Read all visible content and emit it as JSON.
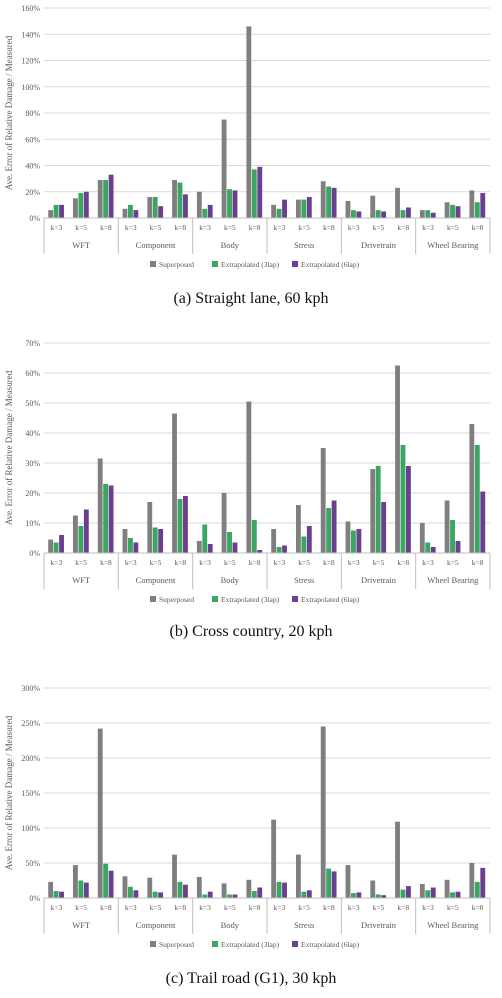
{
  "colors": {
    "superposed": "#7f7f7f",
    "extrap3": "#3aa661",
    "extrap6": "#6a3f8f",
    "grid": "#d9d9d9",
    "axis_text": "#595959"
  },
  "chart_data": [
    {
      "type": "bar",
      "caption": "(a) Straight lane, 60 kph",
      "ylabel": "Ave. Error of Relative Damage / Measured",
      "yticks": [
        "0%",
        "20%",
        "40%",
        "60%",
        "80%",
        "100%",
        "120%",
        "140%",
        "160%"
      ],
      "ylim": [
        0,
        160
      ],
      "groups": [
        "WFT",
        "Component",
        "Body",
        "Stress",
        "Drivetrain",
        "Wheel Bearing"
      ],
      "subcategories": [
        "k=3",
        "k=5",
        "k=8"
      ],
      "series": [
        {
          "name": "Superposed",
          "values": [
            6,
            15,
            29,
            7,
            16,
            29,
            20,
            75,
            146,
            10,
            14,
            28,
            13,
            17,
            23,
            6,
            12,
            21
          ]
        },
        {
          "name": "Extrapolated (3lap)",
          "values": [
            10,
            19,
            29,
            10,
            16,
            27,
            7,
            22,
            37,
            7,
            14,
            24,
            6,
            6,
            6,
            6,
            10,
            12
          ]
        },
        {
          "name": "Extrapolated (6lap)",
          "values": [
            10,
            20,
            33,
            6,
            9,
            18,
            10,
            21,
            39,
            14,
            16,
            23,
            5,
            5,
            8,
            4,
            9,
            19
          ]
        }
      ],
      "legend": "bottom"
    },
    {
      "type": "bar",
      "caption": "(b) Cross country, 20 kph",
      "ylabel": "Ave. Error of Relative Damage / Measured",
      "yticks": [
        "0%",
        "10%",
        "20%",
        "30%",
        "40%",
        "50%",
        "60%",
        "70%"
      ],
      "ylim": [
        0,
        70
      ],
      "groups": [
        "WFT",
        "Component",
        "Body",
        "Stress",
        "Drivetrain",
        "Wheel Bearing"
      ],
      "subcategories": [
        "k=3",
        "k=5",
        "k=8"
      ],
      "series": [
        {
          "name": "Superposed",
          "values": [
            4.5,
            12.5,
            31.5,
            8,
            17,
            46.5,
            4,
            20,
            50.5,
            8,
            16,
            35,
            10.5,
            28,
            62.5,
            10,
            17.5,
            43
          ]
        },
        {
          "name": "Extrapolated (3lap)",
          "values": [
            3.5,
            9,
            23,
            5,
            8.5,
            18,
            9.5,
            7,
            11,
            2,
            5.5,
            15,
            7.5,
            29,
            36,
            3.5,
            11,
            36
          ]
        },
        {
          "name": "Extrapolated (6lap)",
          "values": [
            6,
            14.5,
            22.5,
            3.5,
            8,
            19,
            3,
            3.5,
            1,
            2.5,
            9,
            17.5,
            8,
            17,
            29,
            2,
            4,
            20.5
          ]
        }
      ],
      "legend": "bottom"
    },
    {
      "type": "bar",
      "caption": "(c) Trail road (G1), 30 kph",
      "ylabel": "Ave. Error of Relative Damage / Measured",
      "yticks": [
        "0%",
        "50%",
        "100%",
        "150%",
        "200%",
        "250%",
        "300%"
      ],
      "ylim": [
        0,
        300
      ],
      "groups": [
        "WFT",
        "Component",
        "Body",
        "Stress",
        "Drivetrain",
        "Wheel Bearing"
      ],
      "subcategories": [
        "k=3",
        "k=5",
        "k=8"
      ],
      "series": [
        {
          "name": "Superposed",
          "values": [
            23,
            47,
            242,
            31,
            29,
            62,
            30,
            21,
            26,
            112,
            62,
            245,
            47,
            25,
            109,
            20,
            26,
            50
          ]
        },
        {
          "name": "Extrapolated (3lap)",
          "values": [
            10,
            25,
            49,
            16,
            9,
            23,
            5,
            5,
            10,
            23,
            9,
            42,
            7,
            5,
            12,
            11,
            8,
            23
          ]
        },
        {
          "name": "Extrapolated (6lap)",
          "values": [
            9,
            22,
            39,
            11,
            8,
            19,
            9,
            5,
            15,
            22,
            11,
            38,
            8,
            4,
            17,
            15,
            9,
            43
          ]
        }
      ],
      "legend": "bottom"
    }
  ]
}
